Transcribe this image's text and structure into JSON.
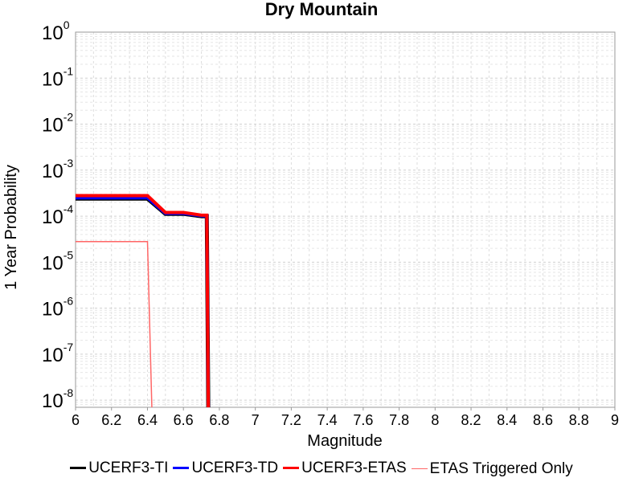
{
  "chart_data": {
    "type": "line",
    "title": "Dry Mountain",
    "xlabel": "Magnitude",
    "ylabel": "1 Year Probability",
    "xlim": [
      6,
      9
    ],
    "ylim": [
      7e-09,
      1
    ],
    "yscale": "log",
    "grid": true,
    "x_ticks": [
      "6",
      "6.2",
      "6.4",
      "6.6",
      "6.8",
      "7",
      "7.2",
      "7.4",
      "7.6",
      "7.8",
      "8",
      "8.2",
      "8.4",
      "8.6",
      "8.8",
      "9"
    ],
    "y_ticks": [
      {
        "base": "10",
        "exp": "-8",
        "value": 1e-08
      },
      {
        "base": "10",
        "exp": "-7",
        "value": 1e-07
      },
      {
        "base": "10",
        "exp": "-6",
        "value": 1e-06
      },
      {
        "base": "10",
        "exp": "-5",
        "value": 1e-05
      },
      {
        "base": "10",
        "exp": "-4",
        "value": 0.0001
      },
      {
        "base": "10",
        "exp": "-3",
        "value": 0.001
      },
      {
        "base": "10",
        "exp": "-2",
        "value": 0.01
      },
      {
        "base": "10",
        "exp": "-1",
        "value": 0.1
      },
      {
        "base": "10",
        "exp": "0",
        "value": 1
      }
    ],
    "legend_position": "bottom",
    "series": [
      {
        "name": "UCERF3-TI",
        "color": "#000000",
        "x": [
          6.0,
          6.4,
          6.5,
          6.6,
          6.7,
          6.73,
          6.74
        ],
        "y": [
          0.00024,
          0.00024,
          0.000112,
          0.000112,
          0.0001,
          0.0001,
          1e-09
        ]
      },
      {
        "name": "UCERF3-TD",
        "color": "#0000ff",
        "x": [
          6.0,
          6.4,
          6.5,
          6.6,
          6.7,
          6.73,
          6.74
        ],
        "y": [
          0.00025,
          0.00025,
          0.000115,
          0.000115,
          0.000102,
          0.000102,
          1e-09
        ]
      },
      {
        "name": "UCERF3-ETAS",
        "color": "#ff0000",
        "x": [
          6.0,
          6.4,
          6.5,
          6.6,
          6.7,
          6.73,
          6.74
        ],
        "y": [
          0.00028,
          0.00028,
          0.00012,
          0.00012,
          0.000105,
          0.000105,
          1e-09
        ]
      },
      {
        "name": "ETAS Triggered Only",
        "color": "#ff6666",
        "x": [
          6.0,
          6.4,
          6.43
        ],
        "y": [
          2.8e-05,
          2.8e-05,
          1e-09
        ]
      }
    ]
  }
}
